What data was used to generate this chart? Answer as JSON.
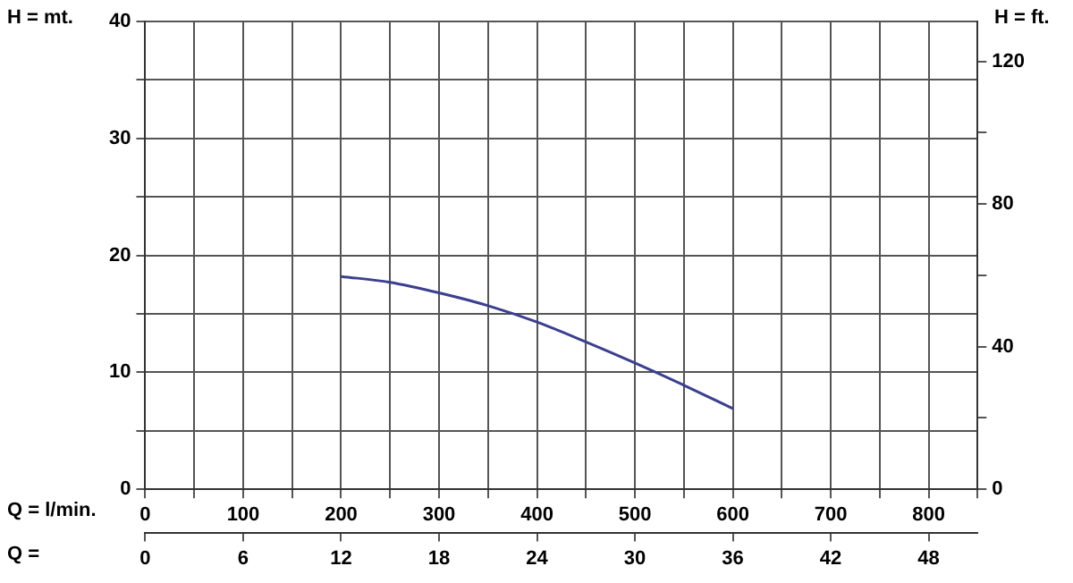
{
  "chart_data": {
    "type": "line",
    "xlabel": "Q = l/min.",
    "x2label": "Q =",
    "ylabel": "H = mt.",
    "y2label": "H = ft.",
    "xlim": [
      0,
      850
    ],
    "xticks": [
      0,
      {
        "value": 50,
        "label": null
      },
      100,
      {
        "value": 150,
        "label": null
      },
      200,
      {
        "value": 250,
        "label": null
      },
      300,
      {
        "value": 350,
        "label": null
      },
      400,
      {
        "value": 450,
        "label": null
      },
      500,
      {
        "value": 550,
        "label": null
      },
      600,
      {
        "value": 650,
        "label": null
      },
      700,
      {
        "value": 750,
        "label": null
      },
      800,
      {
        "value": 850,
        "label": null
      }
    ],
    "x2lim": [
      0,
      51
    ],
    "x2ticks": [
      0,
      6,
      12,
      18,
      24,
      30,
      36,
      42,
      48
    ],
    "ylim": [
      0,
      40
    ],
    "yticks": [
      0,
      {
        "value": 5,
        "label": null
      },
      10,
      {
        "value": 15,
        "label": null
      },
      20,
      {
        "value": 25,
        "label": null
      },
      30,
      {
        "value": 35,
        "label": null
      },
      40
    ],
    "y2lim": [
      0,
      131.2
    ],
    "y2ticks": [
      0,
      {
        "value": 20,
        "label": null
      },
      40,
      {
        "value": 60,
        "label": null
      },
      80,
      {
        "value": 100,
        "label": null
      },
      120
    ],
    "grid": true,
    "legend": false,
    "marker": "none",
    "line_style": "solid",
    "x": [
      200,
      250,
      300,
      350,
      400,
      450,
      500,
      550,
      600
    ],
    "series": [
      {
        "color": "#3a3f8f",
        "values": [
          18.2,
          17.7,
          16.8,
          15.7,
          14.3,
          12.6,
          10.8,
          8.9,
          6.9
        ]
      }
    ]
  }
}
